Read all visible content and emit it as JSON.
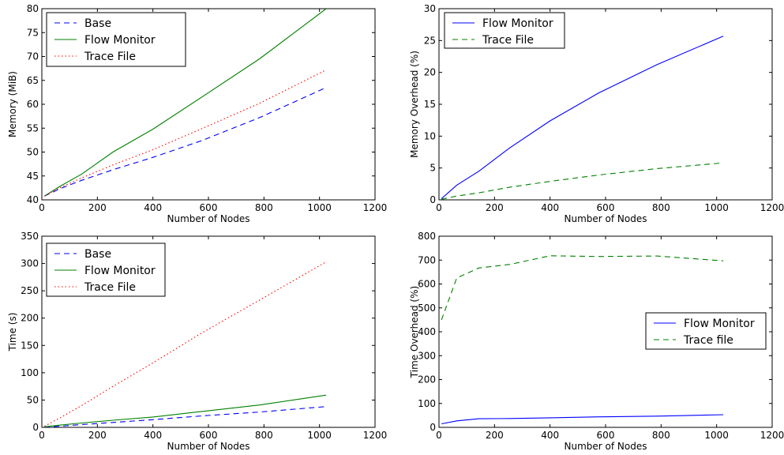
{
  "chart_data": [
    {
      "type": "line",
      "xlabel": "Number of Nodes",
      "ylabel": "Memory (MiB)",
      "xlim": [
        0,
        1200
      ],
      "ylim": [
        40,
        80
      ],
      "xticks": [
        "0",
        "200",
        "400",
        "600",
        "800",
        "1000",
        "1200"
      ],
      "yticks": [
        "40",
        "45",
        "50",
        "55",
        "60",
        "65",
        "70",
        "75",
        "80"
      ],
      "legend_position": "top-left",
      "series": [
        {
          "name": "Base",
          "color": "#0000ff",
          "style": "dashed",
          "x": [
            9,
            64,
            144,
            256,
            400,
            576,
            784,
            1024
          ],
          "y": [
            40.8,
            42.3,
            44.1,
            46.3,
            48.9,
            52.4,
            57.2,
            63.5
          ]
        },
        {
          "name": "Flow Monitor",
          "color": "#008000",
          "style": "solid",
          "x": [
            9,
            64,
            144,
            256,
            400,
            576,
            784,
            1024
          ],
          "y": [
            40.8,
            42.8,
            45.4,
            50.0,
            54.8,
            61.5,
            69.5,
            80.0
          ]
        },
        {
          "name": "Trace File",
          "color": "#ff0000",
          "style": "dotted",
          "x": [
            9,
            64,
            144,
            256,
            400,
            576,
            784,
            1024
          ],
          "y": [
            40.8,
            42.5,
            44.6,
            47.3,
            50.5,
            54.9,
            60.2,
            67.2
          ]
        }
      ]
    },
    {
      "type": "line",
      "xlabel": "Number of Nodes",
      "ylabel": "Memory Overhead (%)",
      "xlim": [
        0,
        1200
      ],
      "ylim": [
        0,
        30
      ],
      "xticks": [
        "0",
        "200",
        "400",
        "600",
        "800",
        "1000",
        "1200"
      ],
      "yticks": [
        "0",
        "5",
        "10",
        "15",
        "20",
        "25",
        "30"
      ],
      "legend_position": "top-left",
      "series": [
        {
          "name": "Flow Monitor",
          "color": "#0000ff",
          "style": "solid",
          "x": [
            9,
            64,
            144,
            256,
            400,
            576,
            784,
            1024
          ],
          "y": [
            0.2,
            2.3,
            4.5,
            8.2,
            12.4,
            16.8,
            21.2,
            25.7
          ]
        },
        {
          "name": "Trace File",
          "color": "#008000",
          "style": "dashed",
          "x": [
            9,
            64,
            144,
            256,
            400,
            576,
            784,
            1024
          ],
          "y": [
            0.1,
            0.6,
            1.1,
            2.0,
            2.9,
            3.9,
            4.9,
            5.8
          ]
        }
      ]
    },
    {
      "type": "line",
      "xlabel": "Number of Nodes",
      "ylabel": "Time (s)",
      "xlim": [
        0,
        1200
      ],
      "ylim": [
        0,
        350
      ],
      "xticks": [
        "0",
        "200",
        "400",
        "600",
        "800",
        "1000",
        "1200"
      ],
      "yticks": [
        "0",
        "50",
        "100",
        "150",
        "200",
        "250",
        "300",
        "350"
      ],
      "legend_position": "top-left",
      "series": [
        {
          "name": "Base",
          "color": "#0000ff",
          "style": "dashed",
          "x": [
            9,
            64,
            144,
            256,
            400,
            576,
            784,
            1024
          ],
          "y": [
            0.3,
            2,
            5,
            9,
            14,
            21,
            28,
            38
          ]
        },
        {
          "name": "Flow Monitor",
          "color": "#008000",
          "style": "solid",
          "x": [
            9,
            64,
            144,
            256,
            400,
            576,
            784,
            1024
          ],
          "y": [
            1,
            4,
            8,
            13,
            19,
            29,
            41,
            59
          ]
        },
        {
          "name": "Trace File",
          "color": "#ff0000",
          "style": "dotted",
          "x": [
            9,
            64,
            144,
            256,
            400,
            576,
            784,
            1024
          ],
          "y": [
            2,
            17,
            40,
            75,
            118,
            173,
            233,
            303
          ]
        }
      ]
    },
    {
      "type": "line",
      "xlabel": "Number of Nodes",
      "ylabel": "Time Overhead (%)",
      "xlim": [
        0,
        1200
      ],
      "ylim": [
        0,
        800
      ],
      "xticks": [
        "0",
        "200",
        "400",
        "600",
        "800",
        "1000",
        "1200"
      ],
      "yticks": [
        "0",
        "100",
        "200",
        "300",
        "400",
        "500",
        "600",
        "700",
        "800"
      ],
      "legend_position": "center-right",
      "series": [
        {
          "name": "Flow Monitor",
          "color": "#0000ff",
          "style": "solid",
          "x": [
            9,
            64,
            144,
            256,
            400,
            576,
            784,
            1024
          ],
          "y": [
            15,
            27,
            36,
            37,
            40,
            44,
            47,
            53
          ]
        },
        {
          "name": "Trace file",
          "color": "#008000",
          "style": "dashed",
          "x": [
            9,
            64,
            144,
            256,
            400,
            576,
            784,
            1024
          ],
          "y": [
            450,
            625,
            667,
            682,
            718,
            715,
            717,
            697
          ]
        }
      ]
    }
  ]
}
